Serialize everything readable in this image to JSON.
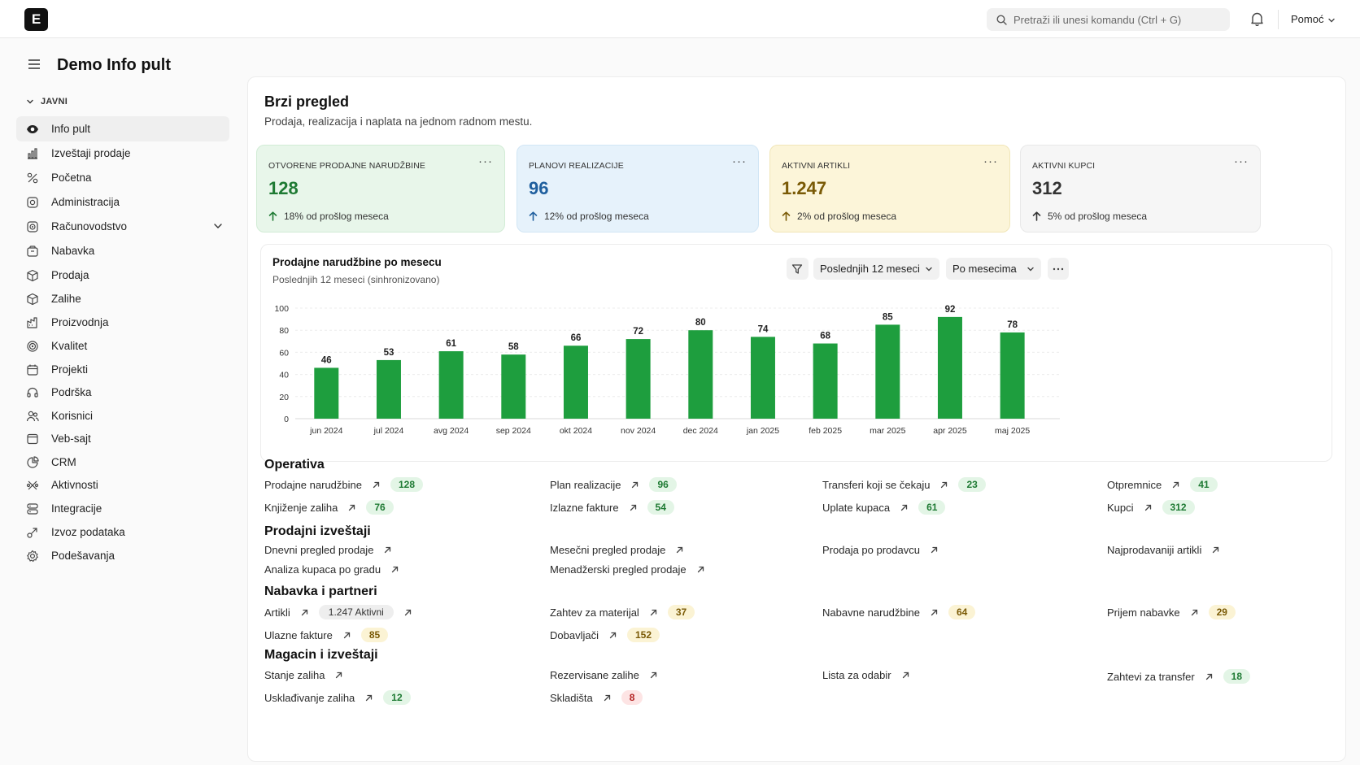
{
  "topbar": {
    "logo_letter": "E",
    "search_placeholder": "Pretraži ili unesi komandu (Ctrl + G)",
    "help_label": "Pomoć"
  },
  "sidebar": {
    "title": "Demo Info pult",
    "group_label": "JAVNI",
    "items": [
      {
        "label": "Info pult",
        "icon": "eye-icon",
        "active": true
      },
      {
        "label": "Izveštaji prodaje",
        "icon": "bar-chart-icon"
      },
      {
        "label": "Početna",
        "icon": "percent-icon"
      },
      {
        "label": "Administracija",
        "icon": "gear-box-icon"
      },
      {
        "label": "Računovodstvo",
        "icon": "ledger-icon",
        "expandable": true
      },
      {
        "label": "Nabavka",
        "icon": "bag-icon"
      },
      {
        "label": "Prodaja",
        "icon": "box-icon"
      },
      {
        "label": "Zalihe",
        "icon": "box-icon"
      },
      {
        "label": "Proizvodnja",
        "icon": "factory-icon"
      },
      {
        "label": "Kvalitet",
        "icon": "target-icon"
      },
      {
        "label": "Projekti",
        "icon": "calendar-icon"
      },
      {
        "label": "Podrška",
        "icon": "headset-icon"
      },
      {
        "label": "Korisnici",
        "icon": "users-icon"
      },
      {
        "label": "Veb-sajt",
        "icon": "browser-icon"
      },
      {
        "label": "CRM",
        "icon": "pie-icon"
      },
      {
        "label": "Aktivnosti",
        "icon": "activity-icon"
      },
      {
        "label": "Integracije",
        "icon": "server-icon"
      },
      {
        "label": "Izvoz podataka",
        "icon": "export-icon"
      },
      {
        "label": "Podešavanja",
        "icon": "settings-icon"
      }
    ]
  },
  "main": {
    "title": "Brzi pregled",
    "subtitle": "Prodaja, realizacija i naplata na jednom radnom mestu."
  },
  "kpis": [
    {
      "label": "OTVORENE PRODAJNE NARUDŽBINE",
      "value": "128",
      "change": "18% od prošlog meseca",
      "color": "#1e7a33",
      "bg": "#e8f6ea",
      "border": "#d2ecd6"
    },
    {
      "label": "PLANOVI REALIZACIJE",
      "value": "96",
      "change": "12% od prošlog meseca",
      "color": "#1f5f9e",
      "bg": "#e6f2fb",
      "border": "#d2e6f5"
    },
    {
      "label": "AKTIVNI ARTIKLI",
      "value": "1.247",
      "change": "2% od prošlog meseca",
      "color": "#7a5a06",
      "bg": "#fcf5d9",
      "border": "#f1e6b8"
    },
    {
      "label": "AKTIVNI KUPCI",
      "value": "312",
      "change": "5% od prošlog meseca",
      "color": "#333333",
      "bg": "#f6f6f6",
      "border": "#e8e8e8"
    }
  ],
  "chart_panel": {
    "filter_period": "Poslednjih 12 meseci",
    "filter_group": "Po mesecima"
  },
  "chart_data": {
    "type": "bar",
    "title": "Prodajne narudžbine po mesecu",
    "subtitle": "Poslednjih 12 meseci (sinhronizovano)",
    "categories": [
      "jun 2024",
      "jul 2024",
      "avg 2024",
      "sep 2024",
      "okt 2024",
      "nov 2024",
      "dec 2024",
      "jan 2025",
      "feb 2025",
      "mar 2025",
      "apr 2025",
      "maj 2025"
    ],
    "values": [
      46,
      53,
      61,
      58,
      66,
      72,
      80,
      74,
      68,
      85,
      92,
      78
    ],
    "ylim": [
      0,
      100
    ],
    "yticks": [
      0,
      20,
      40,
      60,
      80,
      100
    ],
    "bar_color": "#1e9e3e",
    "grid": true,
    "legend": "none"
  },
  "sections": [
    {
      "title": "Operativa",
      "rows": [
        [
          {
            "label": "Prodajne narudžbine",
            "badge": "128",
            "badge_type": "green"
          },
          {
            "label": "Plan realizacije",
            "badge": "96",
            "badge_type": "green"
          },
          {
            "label": "Transferi koji se čekaju",
            "badge": "23",
            "badge_type": "green"
          },
          {
            "label": "Otpremnice",
            "badge": "41",
            "badge_type": "green"
          }
        ],
        [
          {
            "label": "Knjiženje zaliha",
            "badge": "76",
            "badge_type": "green"
          },
          {
            "label": "Izlazne fakture",
            "badge": "54",
            "badge_type": "green"
          },
          {
            "label": "Uplate kupaca",
            "badge": "61",
            "badge_type": "green"
          },
          {
            "label": "Kupci",
            "badge": "312",
            "badge_type": "green"
          }
        ]
      ]
    },
    {
      "title": "Prodajni izveštaji",
      "rows": [
        [
          {
            "label": "Dnevni pregled prodaje"
          },
          {
            "label": "Mesečni pregled prodaje"
          },
          {
            "label": "Prodaja po prodavcu"
          },
          {
            "label": "Najprodavaniji artikli"
          }
        ],
        [
          {
            "label": "Analiza kupaca po gradu"
          },
          {
            "label": "Menadžerski pregled prodaje"
          }
        ]
      ]
    },
    {
      "title": "Nabavka i partneri",
      "rows": [
        [
          {
            "label": "Artikli",
            "badge": "1.247 Aktivni",
            "badge_type": "gray",
            "trailing_arrow": true
          },
          {
            "label": "Zahtev za materijal",
            "badge": "37",
            "badge_type": "yellow"
          },
          {
            "label": "Nabavne narudžbine",
            "badge": "64",
            "badge_type": "yellow"
          },
          {
            "label": "Prijem nabavke",
            "badge": "29",
            "badge_type": "yellow"
          }
        ],
        [
          {
            "label": "Ulazne fakture",
            "badge": "85",
            "badge_type": "yellow"
          },
          {
            "label": "Dobavljači",
            "badge": "152",
            "badge_type": "yellow"
          }
        ]
      ]
    },
    {
      "title": "Magacin i izveštaji",
      "rows": [
        [
          {
            "label": "Stanje zaliha"
          },
          {
            "label": "Rezervisane zalihe"
          },
          {
            "label": "Lista za odabir"
          },
          {
            "label": "Zahtevi za transfer",
            "badge": "18",
            "badge_type": "green"
          }
        ],
        [
          {
            "label": "Usklađivanje zaliha",
            "badge": "12",
            "badge_type": "green"
          },
          {
            "label": "Skladišta",
            "badge": "8",
            "badge_type": "red"
          }
        ]
      ]
    }
  ]
}
